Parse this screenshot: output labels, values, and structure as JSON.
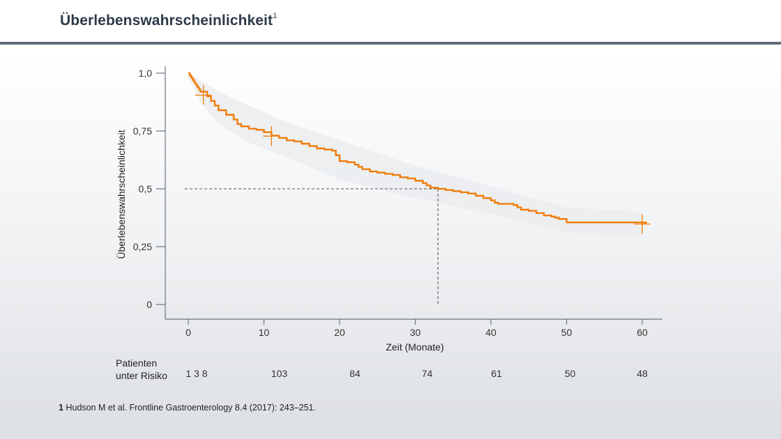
{
  "header": {
    "title": "Überlebenswahrscheinlichkeit",
    "title_superscript": "1"
  },
  "chart_data": {
    "type": "line",
    "ylabel": "Überlebenswahrscheinlichkeit",
    "xlabel": "Zeit (Monate)",
    "xlim": [
      0,
      60
    ],
    "ylim": [
      0,
      1
    ],
    "x_ticks": [
      0,
      10,
      20,
      30,
      40,
      50,
      60
    ],
    "x_tick_labels": [
      "0",
      "10",
      "20",
      "30",
      "40",
      "50",
      "60"
    ],
    "y_ticks": [
      0,
      0.25,
      0.5,
      0.75,
      1.0
    ],
    "y_tick_labels": [
      "0",
      "0,25",
      "0,5",
      "0,75",
      "1,0"
    ],
    "grid": false,
    "line_color": "#f07d0a",
    "ci_color": "#ebedef",
    "median_survival_months": 33,
    "median_probability": 0.5,
    "censor_marks": [
      {
        "x": 2,
        "y": 0.905
      },
      {
        "x": 11,
        "y": 0.728
      },
      {
        "x": 60,
        "y": 0.348
      }
    ],
    "series": [
      {
        "steps": [
          [
            0,
            1.0
          ],
          [
            0.2,
            0.99
          ],
          [
            0.4,
            0.98
          ],
          [
            0.6,
            0.97
          ],
          [
            0.8,
            0.96
          ],
          [
            1.0,
            0.95
          ],
          [
            1.2,
            0.94
          ],
          [
            1.4,
            0.93
          ],
          [
            1.6,
            0.92
          ],
          [
            2.5,
            0.9
          ],
          [
            3,
            0.88
          ],
          [
            3.5,
            0.86
          ],
          [
            4,
            0.84
          ],
          [
            5,
            0.82
          ],
          [
            6,
            0.8
          ],
          [
            6.5,
            0.78
          ],
          [
            7,
            0.77
          ],
          [
            8,
            0.76
          ],
          [
            9,
            0.755
          ],
          [
            10,
            0.745
          ],
          [
            11,
            0.73
          ],
          [
            12,
            0.72
          ],
          [
            13,
            0.71
          ],
          [
            14,
            0.705
          ],
          [
            15,
            0.695
          ],
          [
            16,
            0.685
          ],
          [
            17,
            0.675
          ],
          [
            18,
            0.67
          ],
          [
            19,
            0.665
          ],
          [
            19.5,
            0.645
          ],
          [
            20,
            0.62
          ],
          [
            21,
            0.615
          ],
          [
            22,
            0.605
          ],
          [
            22.5,
            0.595
          ],
          [
            23,
            0.585
          ],
          [
            24,
            0.575
          ],
          [
            25,
            0.57
          ],
          [
            26,
            0.565
          ],
          [
            27,
            0.56
          ],
          [
            28,
            0.55
          ],
          [
            29,
            0.545
          ],
          [
            30,
            0.535
          ],
          [
            31,
            0.525
          ],
          [
            31.5,
            0.515
          ],
          [
            32,
            0.505
          ],
          [
            33,
            0.5
          ],
          [
            34,
            0.495
          ],
          [
            35,
            0.49
          ],
          [
            36,
            0.485
          ],
          [
            37,
            0.48
          ],
          [
            38,
            0.47
          ],
          [
            39,
            0.46
          ],
          [
            40,
            0.45
          ],
          [
            40.5,
            0.44
          ],
          [
            41,
            0.435
          ],
          [
            43,
            0.43
          ],
          [
            43.5,
            0.42
          ],
          [
            44,
            0.41
          ],
          [
            45,
            0.405
          ],
          [
            46,
            0.395
          ],
          [
            47,
            0.385
          ],
          [
            48,
            0.38
          ],
          [
            48.5,
            0.375
          ],
          [
            49,
            0.37
          ],
          [
            50,
            0.355
          ],
          [
            60,
            0.355
          ],
          [
            60.5,
            0.348
          ]
        ]
      }
    ],
    "ci_band": {
      "upper": [
        [
          0,
          1.0
        ],
        [
          2,
          0.96
        ],
        [
          4,
          0.92
        ],
        [
          8,
          0.86
        ],
        [
          12,
          0.8
        ],
        [
          20,
          0.71
        ],
        [
          30,
          0.6
        ],
        [
          40,
          0.51
        ],
        [
          50,
          0.42
        ],
        [
          60,
          0.4
        ]
      ],
      "lower": [
        [
          0,
          0.98
        ],
        [
          2,
          0.86
        ],
        [
          4,
          0.78
        ],
        [
          8,
          0.7
        ],
        [
          12,
          0.65
        ],
        [
          20,
          0.54
        ],
        [
          30,
          0.46
        ],
        [
          40,
          0.39
        ],
        [
          50,
          0.31
        ],
        [
          60,
          0.29
        ]
      ]
    }
  },
  "risk_table": {
    "label_line1": "Patienten",
    "label_line2": "unter Risiko",
    "values": [
      {
        "x": 0,
        "n": "1 3 8"
      },
      {
        "x": 10,
        "n": "103"
      },
      {
        "x": 20,
        "n": "84"
      },
      {
        "x": 30,
        "n": "74"
      },
      {
        "x": 40,
        "n": "61"
      },
      {
        "x": 50,
        "n": "50"
      },
      {
        "x": 60,
        "n": "48"
      }
    ]
  },
  "footnote": {
    "number": "1",
    "text": " Hudson M et al. Frontline Gastroenterology 8.4 (2017): 243–251."
  }
}
